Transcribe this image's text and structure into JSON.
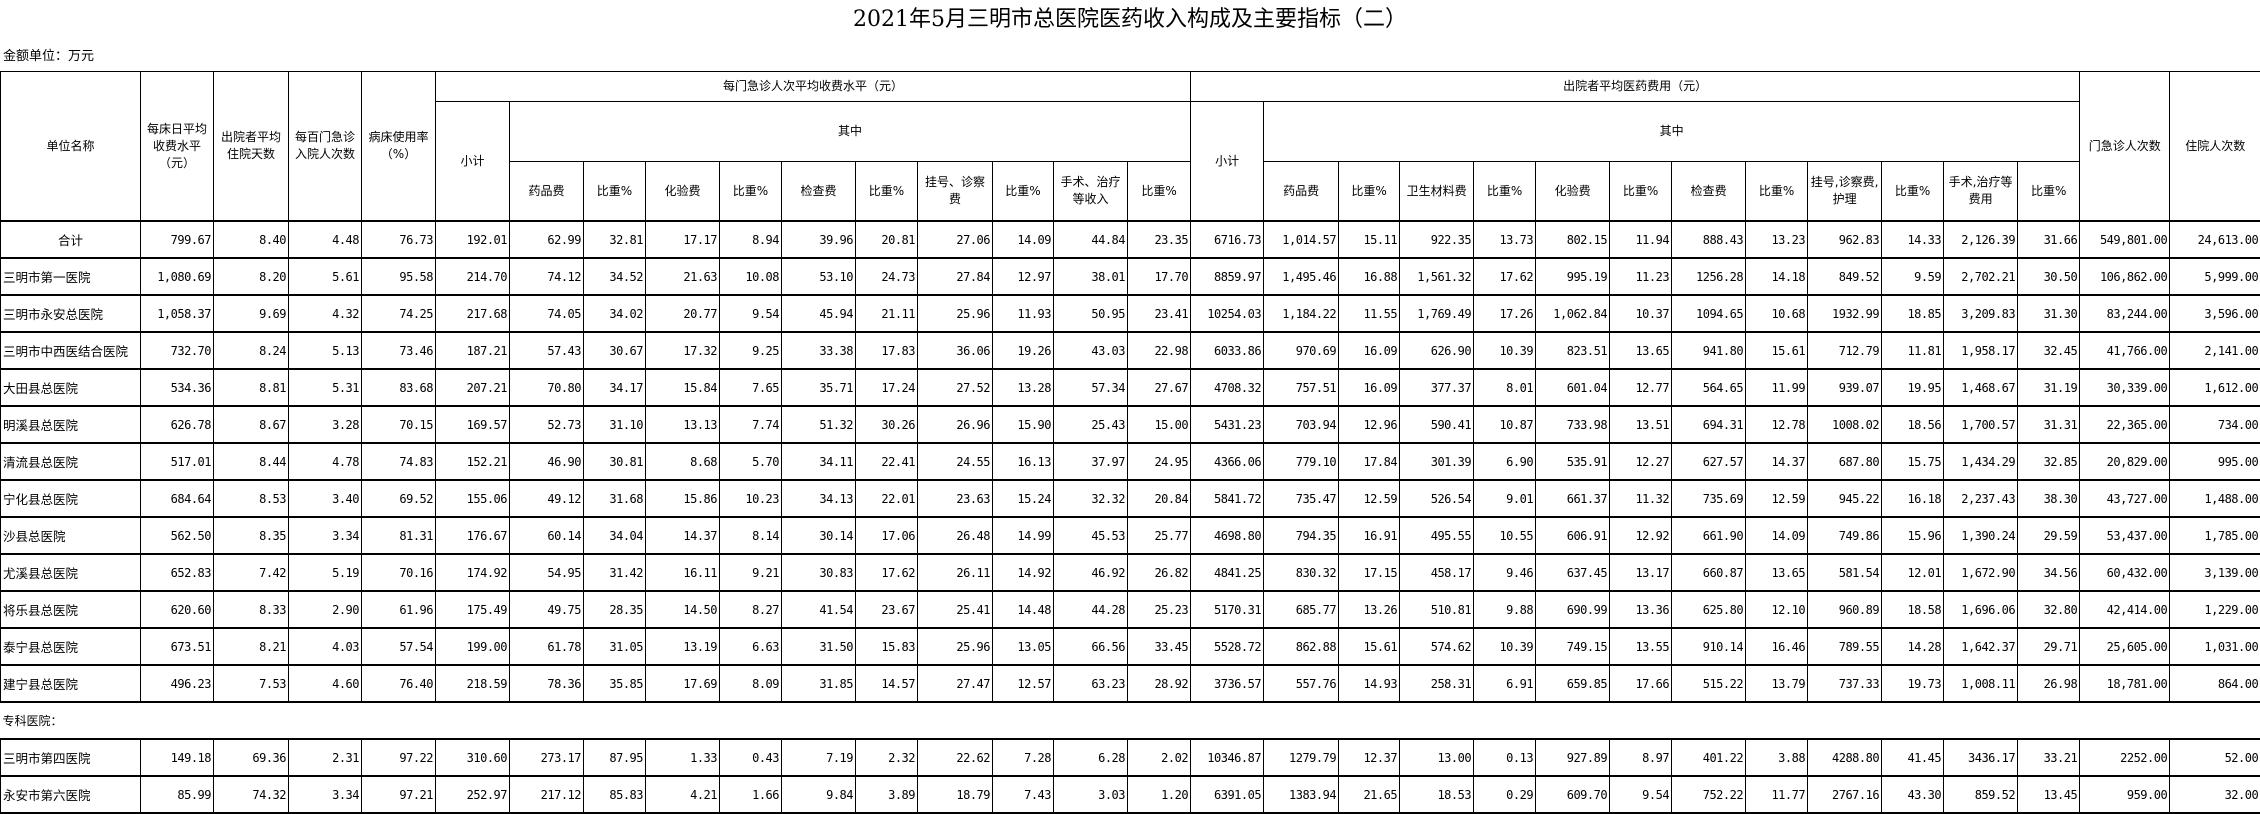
{
  "title": "2021年5月三明市总医院医药收入构成及主要指标（二）",
  "unit": "金额单位：万元",
  "headers": {
    "name": "单位名称",
    "bed_day_fee": "每床日平均收费水平（元）",
    "avg_stay": "出院者平均住院天数",
    "admit_per_100": "每百门急诊入院人次数",
    "bed_use": "病床使用率（%）",
    "outpatient_group": "每门急诊人次平均收费水平（元）",
    "inpatient_group": "出院者平均医药费用（元）",
    "subtotal": "小计",
    "of_which": "其中",
    "outpatient_cols": [
      "药品费",
      "比重%",
      "化验费",
      "比重%",
      "检查费",
      "比重%",
      "挂号、诊察费",
      "比重%",
      "手术、治疗等收入",
      "比重%"
    ],
    "inpatient_cols": [
      "药品费",
      "比重%",
      "卫生材料费",
      "比重%",
      "化验费",
      "比重%",
      "检查费",
      "比重%",
      "挂号,诊察费,护理",
      "比重%",
      "手术,治疗等费用",
      "比重%"
    ],
    "outpatient_visits": "门急诊人次数",
    "inpatient_visits": "住院人次数"
  },
  "rows": [
    {
      "name": "合计",
      "values": [
        "799.67",
        "8.40",
        "4.48",
        "76.73",
        "192.01",
        "62.99",
        "32.81",
        "17.17",
        "8.94",
        "39.96",
        "20.81",
        "27.06",
        "14.09",
        "44.84",
        "23.35",
        "6716.73",
        "1,014.57",
        "15.11",
        "922.35",
        "13.73",
        "802.15",
        "11.94",
        "888.43",
        "13.23",
        "962.83",
        "14.33",
        "2,126.39",
        "31.66",
        "549,801.00",
        "24,613.00"
      ]
    },
    {
      "name": "三明市第一医院",
      "values": [
        "1,080.69",
        "8.20",
        "5.61",
        "95.58",
        "214.70",
        "74.12",
        "34.52",
        "21.63",
        "10.08",
        "53.10",
        "24.73",
        "27.84",
        "12.97",
        "38.01",
        "17.70",
        "8859.97",
        "1,495.46",
        "16.88",
        "1,561.32",
        "17.62",
        "995.19",
        "11.23",
        "1256.28",
        "14.18",
        "849.52",
        "9.59",
        "2,702.21",
        "30.50",
        "106,862.00",
        "5,999.00"
      ]
    },
    {
      "name": "三明市永安总医院",
      "values": [
        "1,058.37",
        "9.69",
        "4.32",
        "74.25",
        "217.68",
        "74.05",
        "34.02",
        "20.77",
        "9.54",
        "45.94",
        "21.11",
        "25.96",
        "11.93",
        "50.95",
        "23.41",
        "10254.03",
        "1,184.22",
        "11.55",
        "1,769.49",
        "17.26",
        "1,062.84",
        "10.37",
        "1094.65",
        "10.68",
        "1932.99",
        "18.85",
        "3,209.83",
        "31.30",
        "83,244.00",
        "3,596.00"
      ]
    },
    {
      "name": "三明市中西医结合医院",
      "values": [
        "732.70",
        "8.24",
        "5.13",
        "73.46",
        "187.21",
        "57.43",
        "30.67",
        "17.32",
        "9.25",
        "33.38",
        "17.83",
        "36.06",
        "19.26",
        "43.03",
        "22.98",
        "6033.86",
        "970.69",
        "16.09",
        "626.90",
        "10.39",
        "823.51",
        "13.65",
        "941.80",
        "15.61",
        "712.79",
        "11.81",
        "1,958.17",
        "32.45",
        "41,766.00",
        "2,141.00"
      ]
    },
    {
      "name": "大田县总医院",
      "values": [
        "534.36",
        "8.81",
        "5.31",
        "83.68",
        "207.21",
        "70.80",
        "34.17",
        "15.84",
        "7.65",
        "35.71",
        "17.24",
        "27.52",
        "13.28",
        "57.34",
        "27.67",
        "4708.32",
        "757.51",
        "16.09",
        "377.37",
        "8.01",
        "601.04",
        "12.77",
        "564.65",
        "11.99",
        "939.07",
        "19.95",
        "1,468.67",
        "31.19",
        "30,339.00",
        "1,612.00"
      ]
    },
    {
      "name": "明溪县总医院",
      "values": [
        "626.78",
        "8.67",
        "3.28",
        "70.15",
        "169.57",
        "52.73",
        "31.10",
        "13.13",
        "7.74",
        "51.32",
        "30.26",
        "26.96",
        "15.90",
        "25.43",
        "15.00",
        "5431.23",
        "703.94",
        "12.96",
        "590.41",
        "10.87",
        "733.98",
        "13.51",
        "694.31",
        "12.78",
        "1008.02",
        "18.56",
        "1,700.57",
        "31.31",
        "22,365.00",
        "734.00"
      ]
    },
    {
      "name": "清流县总医院",
      "values": [
        "517.01",
        "8.44",
        "4.78",
        "74.83",
        "152.21",
        "46.90",
        "30.81",
        "8.68",
        "5.70",
        "34.11",
        "22.41",
        "24.55",
        "16.13",
        "37.97",
        "24.95",
        "4366.06",
        "779.10",
        "17.84",
        "301.39",
        "6.90",
        "535.91",
        "12.27",
        "627.57",
        "14.37",
        "687.80",
        "15.75",
        "1,434.29",
        "32.85",
        "20,829.00",
        "995.00"
      ]
    },
    {
      "name": "宁化县总医院",
      "values": [
        "684.64",
        "8.53",
        "3.40",
        "69.52",
        "155.06",
        "49.12",
        "31.68",
        "15.86",
        "10.23",
        "34.13",
        "22.01",
        "23.63",
        "15.24",
        "32.32",
        "20.84",
        "5841.72",
        "735.47",
        "12.59",
        "526.54",
        "9.01",
        "661.37",
        "11.32",
        "735.69",
        "12.59",
        "945.22",
        "16.18",
        "2,237.43",
        "38.30",
        "43,727.00",
        "1,488.00"
      ]
    },
    {
      "name": "沙县总医院",
      "values": [
        "562.50",
        "8.35",
        "3.34",
        "81.31",
        "176.67",
        "60.14",
        "34.04",
        "14.37",
        "8.14",
        "30.14",
        "17.06",
        "26.48",
        "14.99",
        "45.53",
        "25.77",
        "4698.80",
        "794.35",
        "16.91",
        "495.55",
        "10.55",
        "606.91",
        "12.92",
        "661.90",
        "14.09",
        "749.86",
        "15.96",
        "1,390.24",
        "29.59",
        "53,437.00",
        "1,785.00"
      ]
    },
    {
      "name": "尤溪县总医院",
      "values": [
        "652.83",
        "7.42",
        "5.19",
        "70.16",
        "174.92",
        "54.95",
        "31.42",
        "16.11",
        "9.21",
        "30.83",
        "17.62",
        "26.11",
        "14.92",
        "46.92",
        "26.82",
        "4841.25",
        "830.32",
        "17.15",
        "458.17",
        "9.46",
        "637.45",
        "13.17",
        "660.87",
        "13.65",
        "581.54",
        "12.01",
        "1,672.90",
        "34.56",
        "60,432.00",
        "3,139.00"
      ]
    },
    {
      "name": "将乐县总医院",
      "values": [
        "620.60",
        "8.33",
        "2.90",
        "61.96",
        "175.49",
        "49.75",
        "28.35",
        "14.50",
        "8.27",
        "41.54",
        "23.67",
        "25.41",
        "14.48",
        "44.28",
        "25.23",
        "5170.31",
        "685.77",
        "13.26",
        "510.81",
        "9.88",
        "690.99",
        "13.36",
        "625.80",
        "12.10",
        "960.89",
        "18.58",
        "1,696.06",
        "32.80",
        "42,414.00",
        "1,229.00"
      ]
    },
    {
      "name": "泰宁县总医院",
      "values": [
        "673.51",
        "8.21",
        "4.03",
        "57.54",
        "199.00",
        "61.78",
        "31.05",
        "13.19",
        "6.63",
        "31.50",
        "15.83",
        "25.96",
        "13.05",
        "66.56",
        "33.45",
        "5528.72",
        "862.88",
        "15.61",
        "574.62",
        "10.39",
        "749.15",
        "13.55",
        "910.14",
        "16.46",
        "789.55",
        "14.28",
        "1,642.37",
        "29.71",
        "25,605.00",
        "1,031.00"
      ]
    },
    {
      "name": "建宁县总医院",
      "values": [
        "496.23",
        "7.53",
        "4.60",
        "76.40",
        "218.59",
        "78.36",
        "35.85",
        "17.69",
        "8.09",
        "31.85",
        "14.57",
        "27.47",
        "12.57",
        "63.23",
        "28.92",
        "3736.57",
        "557.76",
        "14.93",
        "258.31",
        "6.91",
        "659.85",
        "17.66",
        "515.22",
        "13.79",
        "737.33",
        "19.73",
        "1,008.11",
        "26.98",
        "18,781.00",
        "864.00"
      ]
    },
    {
      "section": "专科医院："
    },
    {
      "name": "三明市第四医院",
      "values": [
        "149.18",
        "69.36",
        "2.31",
        "97.22",
        "310.60",
        "273.17",
        "87.95",
        "1.33",
        "0.43",
        "7.19",
        "2.32",
        "22.62",
        "7.28",
        "6.28",
        "2.02",
        "10346.87",
        "1279.79",
        "12.37",
        "13.00",
        "0.13",
        "927.89",
        "8.97",
        "401.22",
        "3.88",
        "4288.80",
        "41.45",
        "3436.17",
        "33.21",
        "2252.00",
        "52.00"
      ]
    },
    {
      "name": "永安市第六医院",
      "values": [
        "85.99",
        "74.32",
        "3.34",
        "97.21",
        "252.97",
        "217.12",
        "85.83",
        "4.21",
        "1.66",
        "9.84",
        "3.89",
        "18.79",
        "7.43",
        "3.03",
        "1.20",
        "6391.05",
        "1383.94",
        "21.65",
        "18.53",
        "0.29",
        "609.70",
        "9.54",
        "752.22",
        "11.77",
        "2767.16",
        "43.30",
        "859.52",
        "13.45",
        "959.00",
        "32.00"
      ]
    }
  ]
}
